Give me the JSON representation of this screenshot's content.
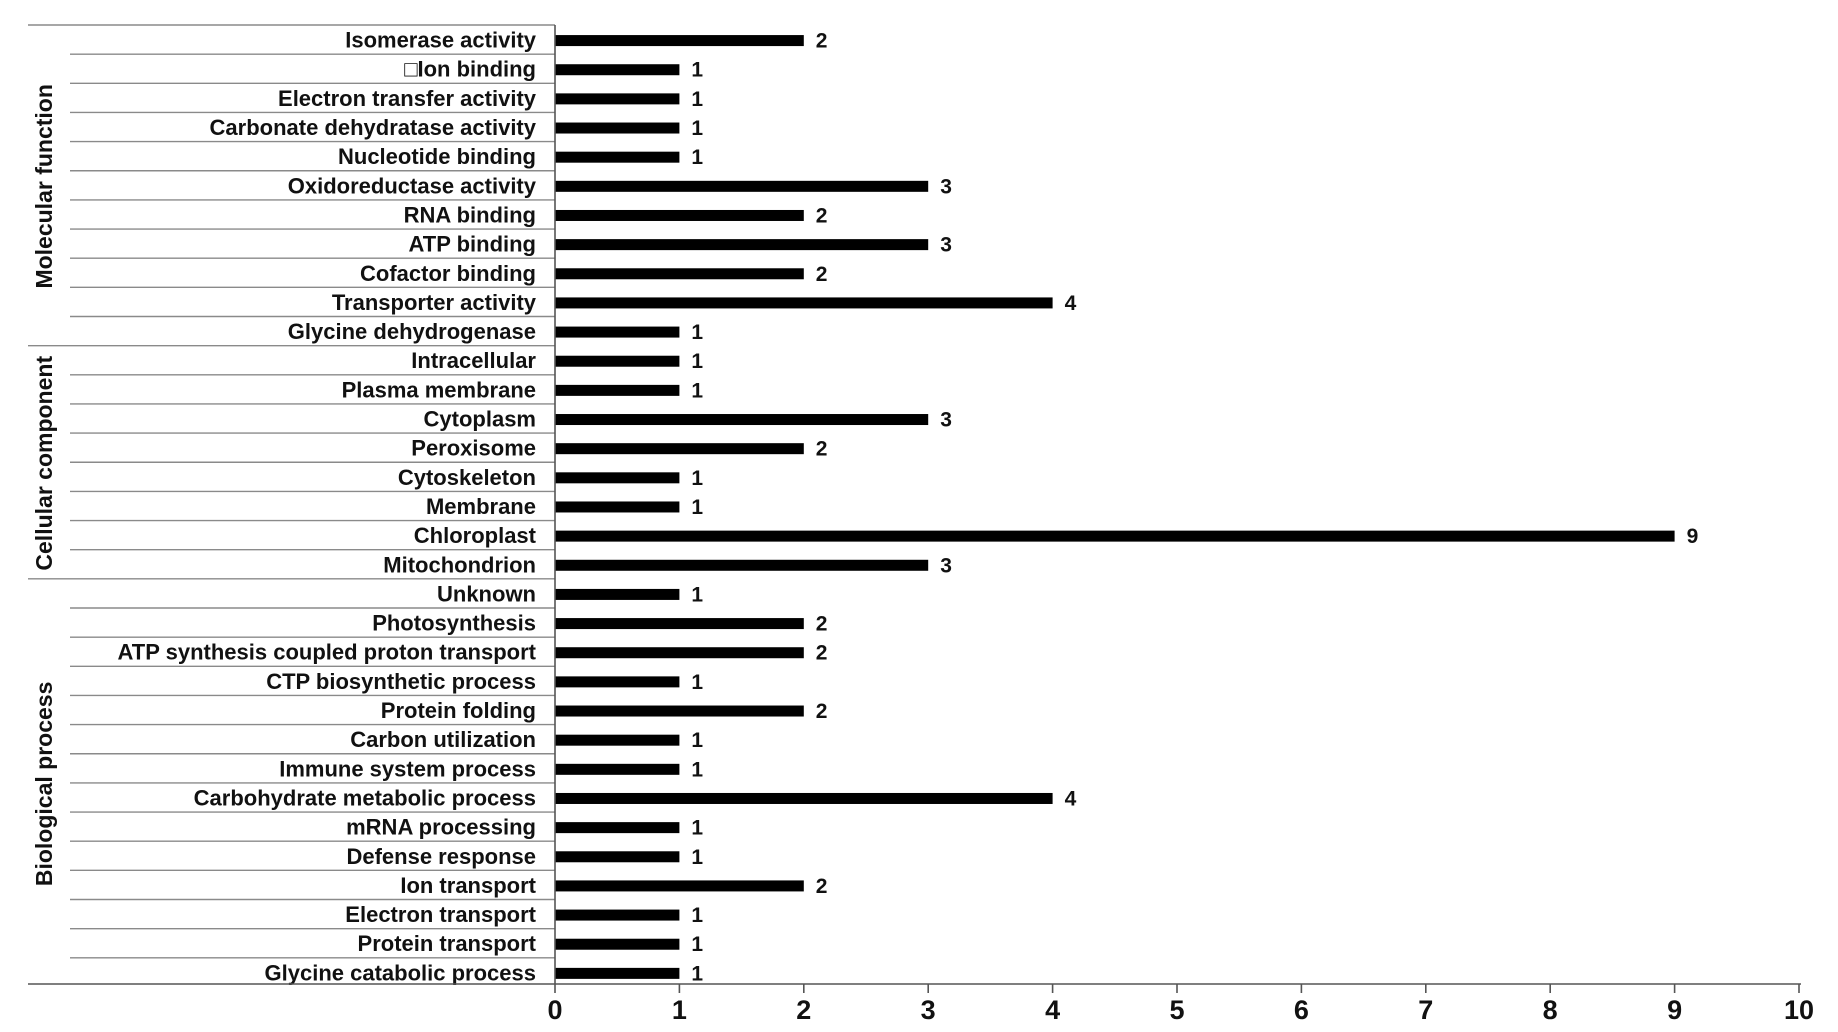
{
  "chart_data": {
    "type": "bar",
    "orientation": "horizontal",
    "title": "",
    "xlabel": "",
    "ylabel": "",
    "xlim": [
      0,
      10
    ],
    "xticks": [
      "0",
      "1",
      "2",
      "3",
      "4",
      "5",
      "6",
      "7",
      "8",
      "9",
      "10"
    ],
    "grid": false,
    "legend": "none",
    "bar_color": "#000000",
    "categories": [
      "Isomerase activity",
      "□Ion binding",
      "Electron transfer activity",
      "Carbonate dehydratase activity",
      "Nucleotide binding",
      "Oxidoreductase activity",
      "RNA binding",
      "ATP binding",
      "Cofactor binding",
      "Transporter activity",
      "Glycine dehydrogenase",
      "Intracellular",
      "Plasma membrane",
      "Cytoplasm",
      "Peroxisome",
      "Cytoskeleton",
      "Membrane",
      "Chloroplast",
      "Mitochondrion",
      "Unknown",
      "Photosynthesis",
      "ATP synthesis coupled proton transport",
      "CTP biosynthetic process",
      "Protein folding",
      "Carbon utilization",
      "Immune system process",
      "Carbohydrate metabolic process",
      "mRNA processing",
      "Defense response",
      "Ion transport",
      "Electron transport",
      "Protein transport",
      "Glycine catabolic process"
    ],
    "values": [
      2,
      1,
      1,
      1,
      1,
      3,
      2,
      3,
      2,
      4,
      1,
      1,
      1,
      3,
      2,
      1,
      1,
      9,
      3,
      1,
      2,
      2,
      1,
      2,
      1,
      1,
      4,
      1,
      1,
      2,
      1,
      1,
      1
    ],
    "groups": [
      {
        "name": "Molecular function",
        "start": 0,
        "end": 10
      },
      {
        "name": "Cellular component",
        "start": 11,
        "end": 18
      },
      {
        "name": "Biological process",
        "start": 19,
        "end": 32
      }
    ]
  }
}
